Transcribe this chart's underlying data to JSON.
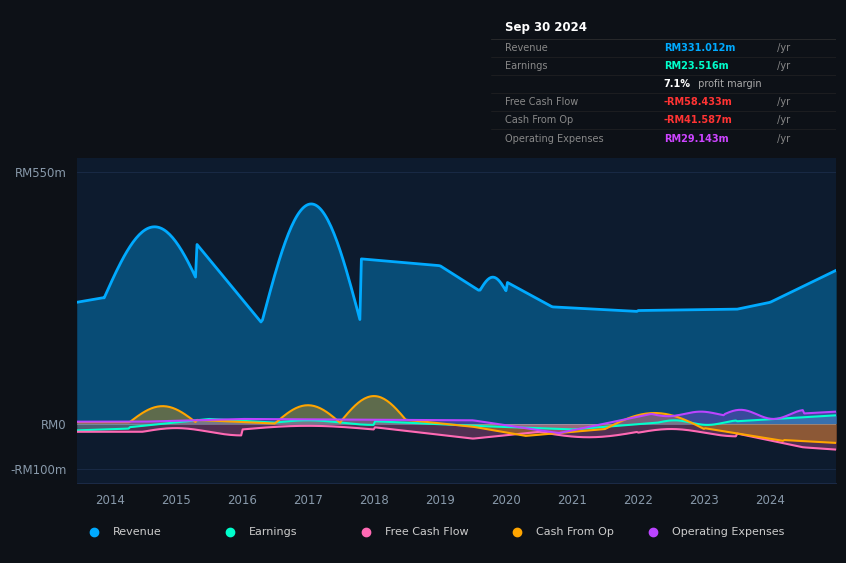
{
  "bg_color": "#0d1117",
  "plot_bg_color": "#0d1b2e",
  "grid_color": "#1e3050",
  "info_box_bg": "#050a0f",
  "info_box_border": "#333333",
  "title": "Sep 30 2024",
  "rows": [
    {
      "label": "Revenue",
      "value": "RM331.012m",
      "suffix": " /yr",
      "value_color": "#00aaff"
    },
    {
      "label": "Earnings",
      "value": "RM23.516m",
      "suffix": " /yr",
      "value_color": "#00ffcc"
    },
    {
      "label": "",
      "value": "7.1%",
      "suffix": " profit margin",
      "value_color": "#ffffff"
    },
    {
      "label": "Free Cash Flow",
      "value": "-RM58.433m",
      "suffix": " /yr",
      "value_color": "#ff3333"
    },
    {
      "label": "Cash From Op",
      "value": "-RM41.587m",
      "suffix": " /yr",
      "value_color": "#ff3333"
    },
    {
      "label": "Operating Expenses",
      "value": "RM29.143m",
      "suffix": " /yr",
      "value_color": "#cc44ff"
    }
  ],
  "legend": [
    {
      "label": "Revenue",
      "color": "#00aaff"
    },
    {
      "label": "Earnings",
      "color": "#00ffcc"
    },
    {
      "label": "Free Cash Flow",
      "color": "#ff69b4"
    },
    {
      "label": "Cash From Op",
      "color": "#ffa500"
    },
    {
      "label": "Operating Expenses",
      "color": "#bb44ff"
    }
  ],
  "rev_color": "#00aaff",
  "earn_color": "#00ffcc",
  "fcf_color": "#ff69b4",
  "cfop_color": "#ffa500",
  "opex_color": "#bb44ff",
  "xlim": [
    2013.5,
    2025.0
  ],
  "ylim": [
    -130,
    580
  ],
  "yticks": [
    -100,
    0,
    550
  ],
  "ytick_labels": [
    "-RM100m",
    "RM0",
    "RM550m"
  ],
  "xticks": [
    2014,
    2015,
    2016,
    2017,
    2018,
    2019,
    2020,
    2021,
    2022,
    2023,
    2024
  ]
}
